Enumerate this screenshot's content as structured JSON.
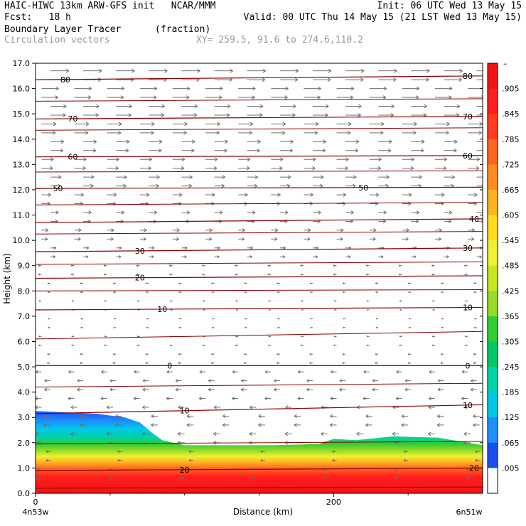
{
  "header": {
    "line1_left": "HAIC-HIWC 13km ARW-GFS init   NCAR/MMM",
    "line1_right": "Init: 06 UTC Wed 13 May 15",
    "fcst": "Fcst:   18 h",
    "valid": "Valid: 00 UTC Thu 14 May 15 (21 LST Wed 13 May 15)",
    "field": "Boundary Layer Tracer",
    "units": "(fraction)",
    "vectors": "Circulation vectors",
    "xy": "XY= 259.5, 91.6 to 274.6,110.2"
  },
  "chart_data": {
    "type": "heatmap",
    "xlabel": "Distance (km)",
    "ylabel": "Height (km)",
    "xlim": [
      0,
      300
    ],
    "ylim": [
      0,
      17
    ],
    "x_ticks": [
      {
        "value": 0,
        "label": "0"
      },
      {
        "value": 200,
        "label": "200"
      }
    ],
    "x_end_labels": {
      "left": "4n53w",
      "right": "6n51w"
    },
    "y_ticks": [
      "0.0",
      "1.0",
      "2.0",
      "3.0",
      "4.0",
      "5.0",
      "6.0",
      "7.0",
      "8.0",
      "9.0",
      "10.0",
      "11.0",
      "12.0",
      "13.0",
      "14.0",
      "15.0",
      "16.0",
      "17.0"
    ],
    "colorbar_labels": [
      ".005",
      ".065",
      ".125",
      ".185",
      ".245",
      ".305",
      ".365",
      ".425",
      ".485",
      ".545",
      ".605",
      ".665",
      ".725",
      ".785",
      ".845",
      ".905"
    ],
    "colorbar_top_label": "–",
    "colorbar_colors": [
      "#ffffff",
      "#1a50f0",
      "#1e90ff",
      "#00c8e6",
      "#00d2aa",
      "#00c864",
      "#32cd32",
      "#96dc28",
      "#c8e61e",
      "#f0f032",
      "#ffdc1e",
      "#ffb41e",
      "#ff8c1e",
      "#ff6420",
      "#ff3c1e",
      "#ff1e1e",
      "#f01414"
    ],
    "isotherm_color": "#8b0000",
    "isotherms": [
      {
        "label": "80",
        "heights": [
          16.35,
          16.5
        ],
        "labels_at": [
          20,
          290
        ]
      },
      {
        "label": "70",
        "heights": [
          14.8,
          14.9
        ],
        "labels_at": [
          25,
          290
        ]
      },
      {
        "label": "60",
        "heights": [
          13.3,
          13.35
        ],
        "labels_at": [
          25,
          290
        ]
      },
      {
        "label": "50",
        "heights": [
          12.05,
          12.1
        ],
        "labels_at": [
          15,
          220
        ]
      },
      {
        "label": "40",
        "heights": [
          10.7,
          10.85
        ],
        "labels_at": [
          295
        ]
      },
      {
        "label": "30",
        "heights": [
          9.55,
          9.7
        ],
        "labels_at": [
          70,
          290
        ]
      },
      {
        "label": "20",
        "heights": [
          8.5,
          8.6
        ],
        "labels_at": [
          70
        ]
      },
      {
        "label": "10",
        "heights": [
          7.25,
          7.35
        ],
        "labels_at": [
          85,
          290
        ]
      },
      {
        "label": "0",
        "heights": [
          5.05,
          5.05
        ],
        "labels_at": [
          90,
          290
        ]
      },
      {
        "label": "10",
        "heights": [
          3.15,
          3.5
        ],
        "labels_at": [
          100,
          290
        ]
      },
      {
        "label": "20",
        "heights": [
          0.9,
          1.0
        ],
        "labels_at": [
          100,
          300
        ]
      }
    ],
    "extra_contours": [
      [
        15.5,
        15.6
      ],
      [
        14.35,
        14.45
      ],
      [
        12.7,
        12.75
      ],
      [
        11.4,
        11.5
      ],
      [
        10.25,
        10.35
      ],
      [
        9.05,
        9.15
      ],
      [
        8.0,
        8.05
      ],
      [
        6.1,
        6.4
      ],
      [
        4.2,
        4.35
      ],
      [
        1.95,
        2.05
      ],
      [
        0.2,
        0.25
      ]
    ],
    "tracer_top_km": [
      [
        0,
        3.25
      ],
      [
        20,
        3.2
      ],
      [
        40,
        3.15
      ],
      [
        60,
        3.0
      ],
      [
        70,
        2.8
      ],
      [
        78,
        2.4
      ],
      [
        85,
        2.1
      ],
      [
        100,
        1.9
      ],
      [
        130,
        1.9
      ],
      [
        160,
        1.9
      ],
      [
        190,
        1.95
      ],
      [
        200,
        2.15
      ],
      [
        215,
        2.1
      ],
      [
        240,
        2.25
      ],
      [
        270,
        2.2
      ],
      [
        300,
        1.9
      ]
    ],
    "wind_upper_km": 9.0,
    "wind_lower_km": 5.0
  }
}
